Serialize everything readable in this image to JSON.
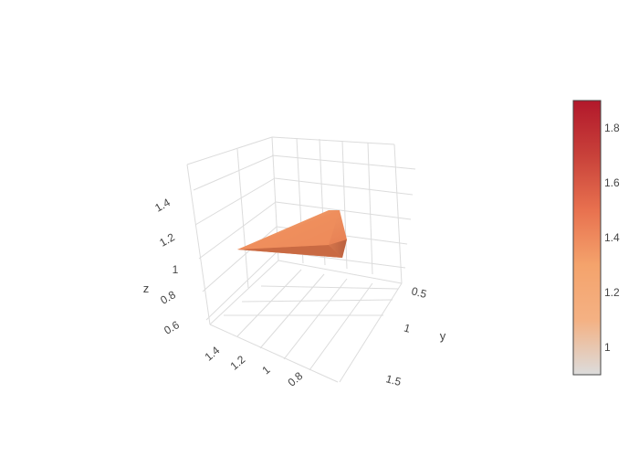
{
  "chart_data": {
    "type": "surface3d",
    "axes": {
      "x": {
        "title": "",
        "ticks": [
          "1.4",
          "1.2",
          "1",
          "0.8"
        ]
      },
      "y": {
        "title": "y",
        "ticks": [
          "0.5",
          "1",
          "1.5"
        ]
      },
      "z": {
        "title": "z",
        "ticks": [
          "0.6",
          "0.8",
          "1",
          "1.2",
          "1.4"
        ]
      }
    },
    "surface_color_value": 1.45,
    "colorbar": {
      "colorscale": [
        "#dcdcdc",
        "#f4b183",
        "#f4a36c",
        "#e8714f",
        "#c8413a",
        "#b2182b"
      ],
      "ticks": [
        "1",
        "1.2",
        "1.4",
        "1.6",
        "1.8"
      ],
      "range": [
        0.9,
        1.9
      ],
      "tick_values": [
        1,
        1.2,
        1.4,
        1.6,
        1.8
      ]
    }
  }
}
